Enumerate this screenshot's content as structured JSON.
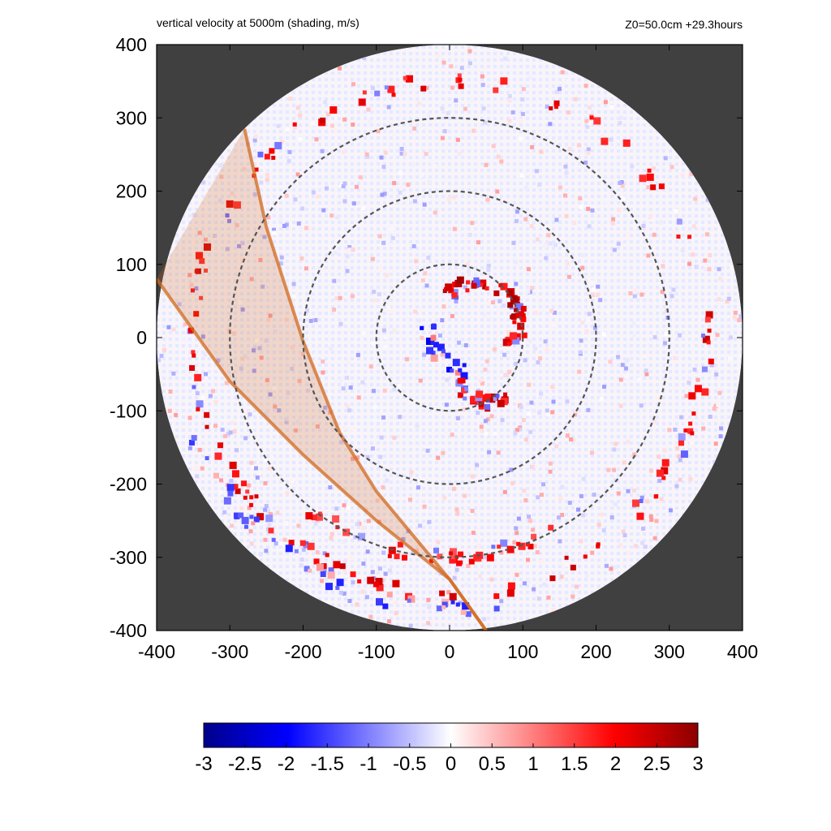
{
  "header": {
    "title": "vertical velocity at 5000m (shading, m/s)",
    "info": "Z0=50.0cm  +29.3hours"
  },
  "colors": {
    "background_outside_domain": "#404040",
    "negative_max": "#00008b",
    "negative_mid": "#0000ff",
    "zero": "#ffffff",
    "positive_mid": "#ff0000",
    "positive_max": "#8b0000",
    "overlay_band": "#d2691e",
    "range_rings": "#555555"
  },
  "chart_data": {
    "type": "heatmap",
    "title": "vertical velocity at 5000m (shading, m/s)",
    "xlabel": "",
    "ylabel": "",
    "xlim": [
      -400,
      400
    ],
    "ylim": [
      -400,
      400
    ],
    "x_ticks": [
      "-400",
      "-300",
      "-200",
      "-100",
      "0",
      "100",
      "200",
      "300",
      "400"
    ],
    "y_ticks": [
      "400",
      "300",
      "200",
      "100",
      "0",
      "-100",
      "-200",
      "-300",
      "-400"
    ],
    "domain_radius": 400,
    "range_rings": [
      100,
      200,
      300
    ],
    "colorbar": {
      "range": [
        -3,
        3
      ],
      "ticks": [
        "-3",
        "-2.5",
        "-2",
        "-1.5",
        "-1",
        "-0.5",
        "0",
        "0.5",
        "1",
        "1.5",
        "2",
        "2.5",
        "3"
      ]
    },
    "overlay_band": {
      "left_edge": [
        [
          -400,
          80
        ],
        [
          -300,
          -60
        ],
        [
          -200,
          -160
        ],
        [
          -100,
          -250
        ],
        [
          -50,
          -290
        ],
        [
          0,
          -330
        ],
        [
          50,
          -400
        ]
      ],
      "right_edge": [
        [
          -280,
          285
        ],
        [
          -250,
          150
        ],
        [
          -200,
          -5
        ],
        [
          -150,
          -130
        ],
        [
          -100,
          -210
        ],
        [
          0,
          -330
        ],
        [
          50,
          -400
        ]
      ]
    },
    "features": [
      {
        "kind": "eyewall",
        "cx": 40,
        "cy": 20,
        "r": 55,
        "a0": -40,
        "a1": 140,
        "value": 2.8,
        "n": 60
      },
      {
        "kind": "eyewall",
        "cx": 40,
        "cy": 20,
        "r": 70,
        "a0": 180,
        "a1": 260,
        "value": -2.2,
        "n": 20
      },
      {
        "kind": "band",
        "cx": 60,
        "cy": -40,
        "r": 50,
        "a0": 200,
        "a1": 300,
        "value": 2.6,
        "n": 30
      },
      {
        "kind": "ring",
        "cx": 0,
        "cy": 0,
        "r": 350,
        "a0": 0,
        "a1": 360,
        "value": 2.5,
        "n": 140
      },
      {
        "kind": "ring",
        "cx": 0,
        "cy": 0,
        "r": 370,
        "a0": 200,
        "a1": 280,
        "value": -1.8,
        "n": 40
      },
      {
        "kind": "ring",
        "cx": 0,
        "cy": 0,
        "r": 300,
        "a0": 230,
        "a1": 300,
        "value": 2.2,
        "n": 40
      }
    ]
  }
}
